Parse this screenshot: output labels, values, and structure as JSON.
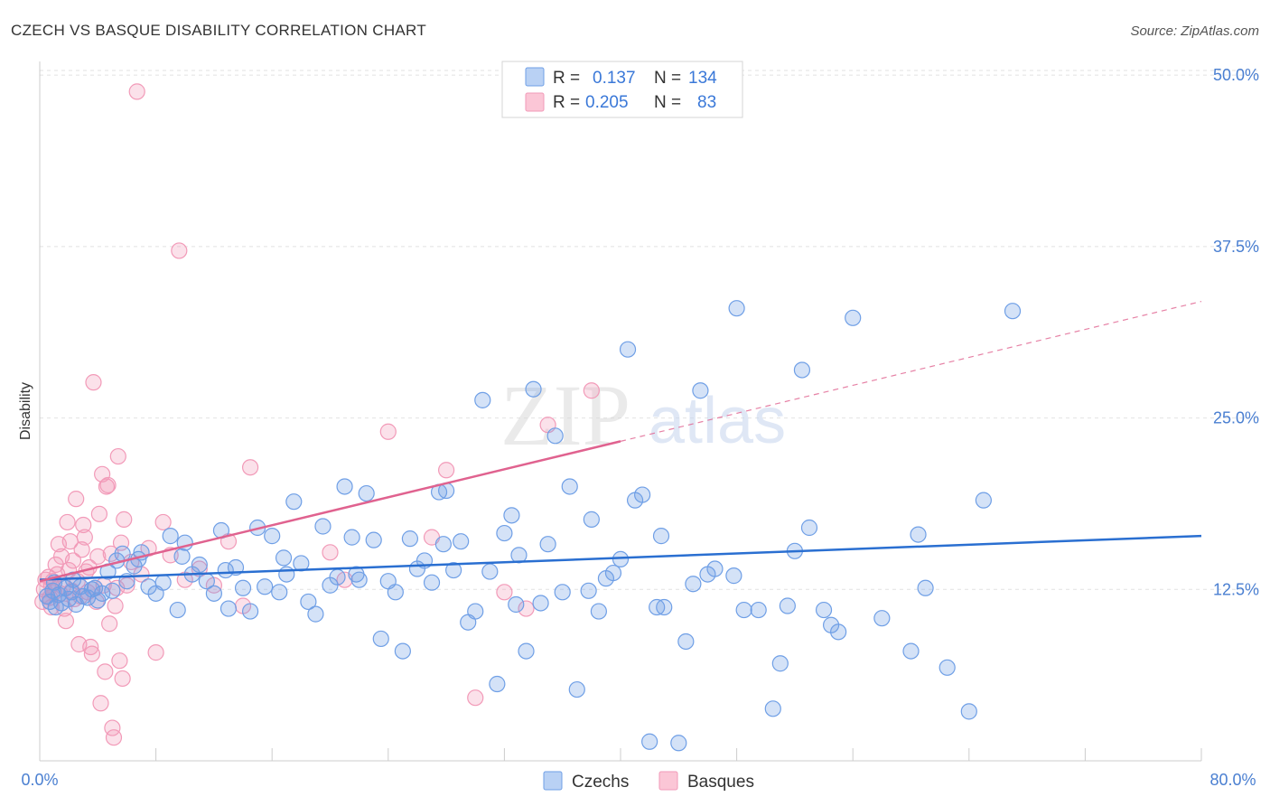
{
  "chart_data": {
    "type": "scatter",
    "title": "CZECH VS BASQUE DISABILITY CORRELATION CHART",
    "source": "Source: ZipAtlas.com",
    "ylabel": "Disability",
    "xlim": [
      0,
      80
    ],
    "ylim": [
      0,
      51
    ],
    "x_tick_labels": [
      "0.0%",
      "80.0%"
    ],
    "y_ticks": [
      12.5,
      25.0,
      37.5,
      50.0
    ],
    "y_tick_labels": [
      "12.5%",
      "25.0%",
      "37.5%",
      "50.0%"
    ],
    "grid": true,
    "watermark": {
      "zip": "ZIP",
      "atlas": "atlas"
    },
    "legend_top": {
      "r_label": "R =",
      "n_label": "N =",
      "rows": [
        {
          "r": "0.137",
          "n": "134"
        },
        {
          "r": "0.205",
          "n": "83"
        }
      ]
    },
    "series": [
      {
        "name": "Czechs",
        "color": "#6f9fe6",
        "line_color": "#2a6fd1",
        "trend": {
          "x0": 0,
          "y0": 13.2,
          "x1": 80,
          "y1": 16.4,
          "dashed_from": null
        },
        "points": [
          [
            0.5,
            12.0
          ],
          [
            0.7,
            11.6
          ],
          [
            0.9,
            12.4
          ],
          [
            1.1,
            11.2
          ],
          [
            1.3,
            12.1
          ],
          [
            1.5,
            11.5
          ],
          [
            1.8,
            12.6
          ],
          [
            2.0,
            11.8
          ],
          [
            2.2,
            12.3
          ],
          [
            2.5,
            11.4
          ],
          [
            2.8,
            12.7
          ],
          [
            3.0,
            12.0
          ],
          [
            3.3,
            11.9
          ],
          [
            3.6,
            12.5
          ],
          [
            4.0,
            11.7
          ],
          [
            4.3,
            12.2
          ],
          [
            4.7,
            13.8
          ],
          [
            5.0,
            12.4
          ],
          [
            5.3,
            14.6
          ],
          [
            5.7,
            15.1
          ],
          [
            6.0,
            13.1
          ],
          [
            6.5,
            14.2
          ],
          [
            7.0,
            15.2
          ],
          [
            7.5,
            12.7
          ],
          [
            8.0,
            12.2
          ],
          [
            8.5,
            13.0
          ],
          [
            9.0,
            16.4
          ],
          [
            9.5,
            11.0
          ],
          [
            10.0,
            15.9
          ],
          [
            10.5,
            13.6
          ],
          [
            11.0,
            14.3
          ],
          [
            11.5,
            13.1
          ],
          [
            12.0,
            12.2
          ],
          [
            12.5,
            16.8
          ],
          [
            13.0,
            11.1
          ],
          [
            13.5,
            14.1
          ],
          [
            14.0,
            12.6
          ],
          [
            14.5,
            10.9
          ],
          [
            15.0,
            17.0
          ],
          [
            15.5,
            12.7
          ],
          [
            16.0,
            16.4
          ],
          [
            16.5,
            12.3
          ],
          [
            17.0,
            13.6
          ],
          [
            17.5,
            18.9
          ],
          [
            18.0,
            14.4
          ],
          [
            18.5,
            11.6
          ],
          [
            19.0,
            10.7
          ],
          [
            19.5,
            17.1
          ],
          [
            20.0,
            12.8
          ],
          [
            20.5,
            13.4
          ],
          [
            21.0,
            20.0
          ],
          [
            21.5,
            16.3
          ],
          [
            22.0,
            13.2
          ],
          [
            22.5,
            19.5
          ],
          [
            23.0,
            16.1
          ],
          [
            23.5,
            8.9
          ],
          [
            24.0,
            13.1
          ],
          [
            24.5,
            12.3
          ],
          [
            25.0,
            8.0
          ],
          [
            25.5,
            16.2
          ],
          [
            26.0,
            14.0
          ],
          [
            26.5,
            14.6
          ],
          [
            27.0,
            13.0
          ],
          [
            27.5,
            19.6
          ],
          [
            28.0,
            19.7
          ],
          [
            28.5,
            13.9
          ],
          [
            29.0,
            16.0
          ],
          [
            29.5,
            10.1
          ],
          [
            30.0,
            10.9
          ],
          [
            30.5,
            26.3
          ],
          [
            31.0,
            13.8
          ],
          [
            31.5,
            5.6
          ],
          [
            32.0,
            16.6
          ],
          [
            32.5,
            17.9
          ],
          [
            33.0,
            15.0
          ],
          [
            33.5,
            8.0
          ],
          [
            34.0,
            27.1
          ],
          [
            34.5,
            11.5
          ],
          [
            35.0,
            15.8
          ],
          [
            35.5,
            23.7
          ],
          [
            36.0,
            12.3
          ],
          [
            36.5,
            20.0
          ],
          [
            37.0,
            5.2
          ],
          [
            38.0,
            17.6
          ],
          [
            38.5,
            10.9
          ],
          [
            39.0,
            13.3
          ],
          [
            39.5,
            13.7
          ],
          [
            40.0,
            14.7
          ],
          [
            40.5,
            30.0
          ],
          [
            41.0,
            19.0
          ],
          [
            41.5,
            19.4
          ],
          [
            42.0,
            1.4
          ],
          [
            42.5,
            11.2
          ],
          [
            43.0,
            11.2
          ],
          [
            44.0,
            1.3
          ],
          [
            44.5,
            8.7
          ],
          [
            45.0,
            12.9
          ],
          [
            45.5,
            27.0
          ],
          [
            46.0,
            13.6
          ],
          [
            46.5,
            14.0
          ],
          [
            48.0,
            33.0
          ],
          [
            48.5,
            11.0
          ],
          [
            49.5,
            11.0
          ],
          [
            50.5,
            3.8
          ],
          [
            51.0,
            7.1
          ],
          [
            51.5,
            11.3
          ],
          [
            52.0,
            15.3
          ],
          [
            52.5,
            28.5
          ],
          [
            53.0,
            17.0
          ],
          [
            54.0,
            11.0
          ],
          [
            54.5,
            9.9
          ],
          [
            55.0,
            9.4
          ],
          [
            56.0,
            32.3
          ],
          [
            58.0,
            10.4
          ],
          [
            60.0,
            8.0
          ],
          [
            60.5,
            16.5
          ],
          [
            61.0,
            12.6
          ],
          [
            62.5,
            6.8
          ],
          [
            64.0,
            3.6
          ],
          [
            65.0,
            19.0
          ],
          [
            67.0,
            32.8
          ],
          [
            3.8,
            12.6
          ],
          [
            6.8,
            14.7
          ],
          [
            9.8,
            14.9
          ],
          [
            12.8,
            13.9
          ],
          [
            16.8,
            14.8
          ],
          [
            21.8,
            13.6
          ],
          [
            27.8,
            15.8
          ],
          [
            32.8,
            11.4
          ],
          [
            37.8,
            12.4
          ],
          [
            42.8,
            16.4
          ],
          [
            47.8,
            13.5
          ],
          [
            1.0,
            13.0
          ],
          [
            2.3,
            13.2
          ]
        ]
      },
      {
        "name": "Basques",
        "color": "#f29ab8",
        "line_color": "#e0628f",
        "trend": {
          "x0": 0,
          "y0": 13.1,
          "x1": 80,
          "y1": 33.5,
          "dashed_from": 40
        },
        "points": [
          [
            0.2,
            11.6
          ],
          [
            0.3,
            12.5
          ],
          [
            0.4,
            13.2
          ],
          [
            0.5,
            12.0
          ],
          [
            0.6,
            13.4
          ],
          [
            0.7,
            11.9
          ],
          [
            0.8,
            12.8
          ],
          [
            0.9,
            13.1
          ],
          [
            1.0,
            12.3
          ],
          [
            1.1,
            14.3
          ],
          [
            1.2,
            13.6
          ],
          [
            1.3,
            15.8
          ],
          [
            1.4,
            12.2
          ],
          [
            1.5,
            14.9
          ],
          [
            1.6,
            12.7
          ],
          [
            1.7,
            11.1
          ],
          [
            1.8,
            10.2
          ],
          [
            1.9,
            17.4
          ],
          [
            2.0,
            13.9
          ],
          [
            2.1,
            16.0
          ],
          [
            2.2,
            12.4
          ],
          [
            2.3,
            14.6
          ],
          [
            2.4,
            11.8
          ],
          [
            2.5,
            19.1
          ],
          [
            2.6,
            13.1
          ],
          [
            2.7,
            8.5
          ],
          [
            2.8,
            12.0
          ],
          [
            2.9,
            15.4
          ],
          [
            3.0,
            17.2
          ],
          [
            3.1,
            16.3
          ],
          [
            3.2,
            13.8
          ],
          [
            3.3,
            12.3
          ],
          [
            3.4,
            14.1
          ],
          [
            3.5,
            8.3
          ],
          [
            3.6,
            7.8
          ],
          [
            3.7,
            27.6
          ],
          [
            3.8,
            12.6
          ],
          [
            3.9,
            11.6
          ],
          [
            4.0,
            14.9
          ],
          [
            4.1,
            18.0
          ],
          [
            4.2,
            4.2
          ],
          [
            4.3,
            20.9
          ],
          [
            4.4,
            12.8
          ],
          [
            4.5,
            6.5
          ],
          [
            4.6,
            20.0
          ],
          [
            4.7,
            20.1
          ],
          [
            4.8,
            10.0
          ],
          [
            4.9,
            15.1
          ],
          [
            5.0,
            2.4
          ],
          [
            5.1,
            1.7
          ],
          [
            5.2,
            11.3
          ],
          [
            5.3,
            12.6
          ],
          [
            5.4,
            22.2
          ],
          [
            5.5,
            7.3
          ],
          [
            5.6,
            15.9
          ],
          [
            5.7,
            6.0
          ],
          [
            5.8,
            17.6
          ],
          [
            6.0,
            12.8
          ],
          [
            6.3,
            14.5
          ],
          [
            6.7,
            48.8
          ],
          [
            7.0,
            13.6
          ],
          [
            7.5,
            15.5
          ],
          [
            8.0,
            7.9
          ],
          [
            8.5,
            17.4
          ],
          [
            9.0,
            15.0
          ],
          [
            9.6,
            37.2
          ],
          [
            10.0,
            13.2
          ],
          [
            11.0,
            14.0
          ],
          [
            12.0,
            12.8
          ],
          [
            13.0,
            16.0
          ],
          [
            14.0,
            11.3
          ],
          [
            14.5,
            21.4
          ],
          [
            20.0,
            15.2
          ],
          [
            21.0,
            13.2
          ],
          [
            27.0,
            16.3
          ],
          [
            28.0,
            21.2
          ],
          [
            32.0,
            12.3
          ],
          [
            33.5,
            11.1
          ],
          [
            35.0,
            24.5
          ],
          [
            38.0,
            27.0
          ],
          [
            24.0,
            24.0
          ],
          [
            30.0,
            4.6
          ],
          [
            0.8,
            11.2
          ]
        ]
      }
    ]
  },
  "legend_bottom": [
    {
      "name": "Czechs"
    },
    {
      "name": "Basques"
    }
  ]
}
